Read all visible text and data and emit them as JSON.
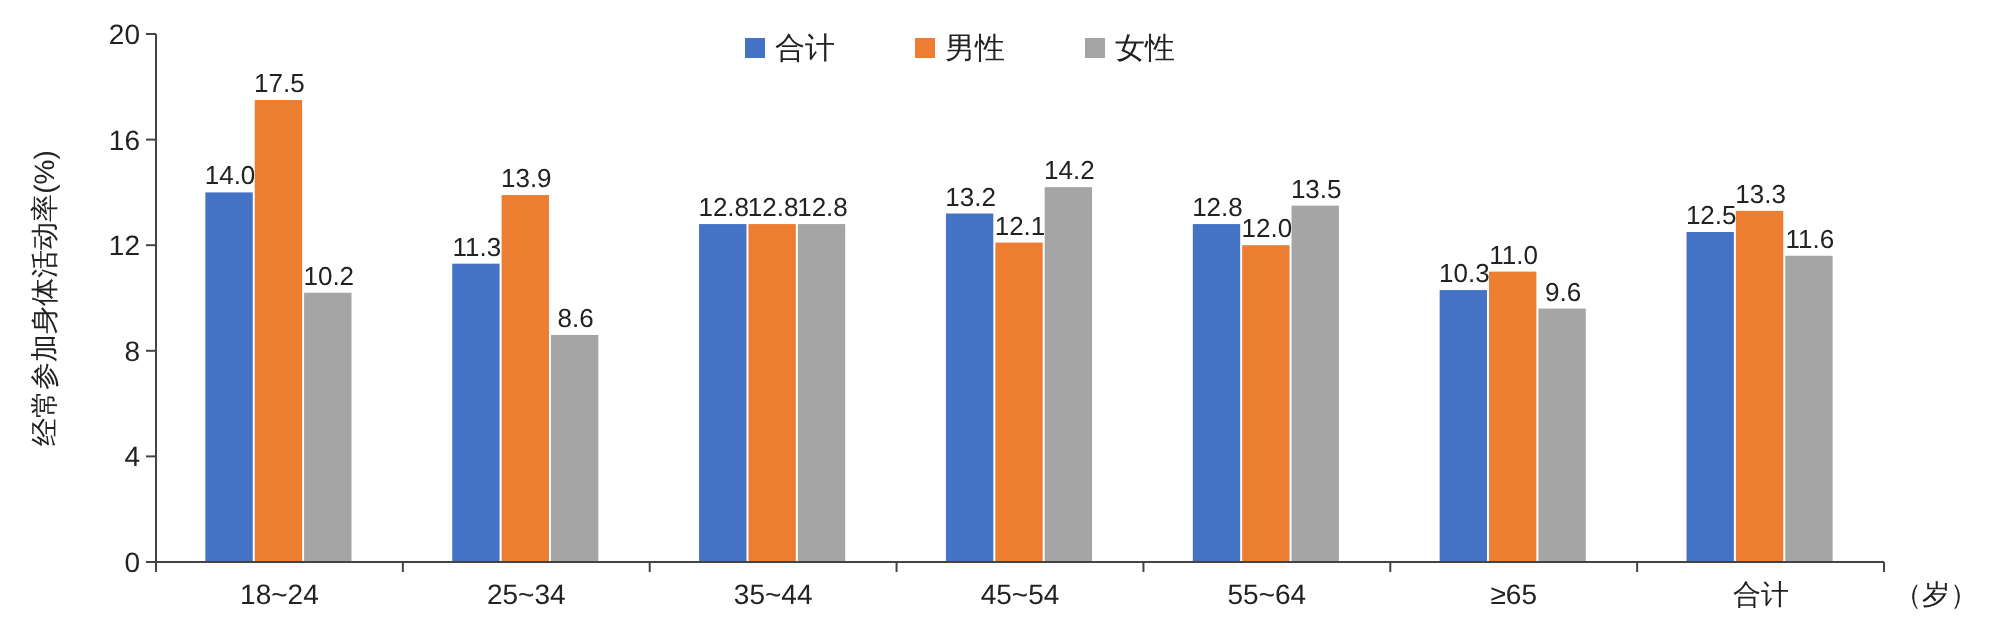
{
  "chart_data": {
    "type": "bar",
    "ylabel": "经常参加身体活动率(%)",
    "xlabel": "（岁）",
    "categories": [
      "18~24",
      "25~34",
      "35~44",
      "45~54",
      "55~64",
      "≥65",
      "合计"
    ],
    "series": [
      {
        "name": "合计",
        "color": "#4472c4",
        "values": [
          14.0,
          11.3,
          12.8,
          13.2,
          12.8,
          10.3,
          12.5
        ],
        "value_labels": [
          "14.0",
          "11.3",
          "12.8",
          "13.2",
          "12.8",
          "10.3",
          "12.5"
        ]
      },
      {
        "name": "男性",
        "color": "#ed7d31",
        "values": [
          17.5,
          13.9,
          12.8,
          12.1,
          12.0,
          11.0,
          13.3
        ],
        "value_labels": [
          "17.5",
          "13.9",
          "12.8",
          "12.1",
          "12.0",
          "11.0",
          "13.3"
        ]
      },
      {
        "name": "女性",
        "color": "#a5a5a5",
        "values": [
          10.2,
          8.6,
          12.8,
          14.2,
          13.5,
          9.6,
          11.6
        ],
        "value_labels": [
          "10.2",
          "8.6",
          "12.8",
          "14.2",
          "13.5",
          "9.6",
          "11.6"
        ]
      }
    ],
    "ylim": [
      0,
      20
    ],
    "yticks": [
      0,
      4,
      8,
      12,
      16,
      20
    ],
    "grid": false,
    "legend": "top"
  }
}
